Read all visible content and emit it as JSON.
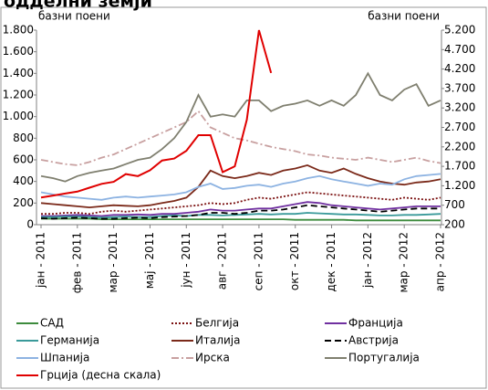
{
  "chart_data": {
    "type": "line",
    "title": "одделни земји",
    "y_label": "базни поени",
    "y2_label": "базни поени",
    "categories": [
      "јан - 2011",
      null,
      null,
      "фев - 2011",
      null,
      null,
      "мар - 2011",
      null,
      null,
      "мај - 2011",
      null,
      null,
      "јун - 2011",
      null,
      null,
      "авг - 2011",
      null,
      null,
      "сеп - 2011",
      null,
      null,
      "окт - 2011",
      null,
      null,
      "дек - 2011",
      null,
      null,
      "јан - 2012",
      null,
      null,
      "мар - 2012",
      null,
      null,
      "апр - 2012"
    ],
    "ylim": [
      0,
      1800
    ],
    "yticks": [
      0,
      200,
      400,
      600,
      800,
      {
        "value": 1000,
        "label": "1.000"
      },
      {
        "value": 1200,
        "label": "1.200"
      },
      {
        "value": 1400,
        "label": "1.400"
      },
      {
        "value": 1600,
        "label": "1.600"
      },
      {
        "value": 1800,
        "label": "1.800"
      }
    ],
    "y2lim": [
      200,
      5200
    ],
    "y2ticks": [
      200,
      700,
      {
        "value": 1200,
        "label": "1.200"
      },
      {
        "value": 1700,
        "label": "1.700"
      },
      {
        "value": 2200,
        "label": "2.200"
      },
      {
        "value": 2700,
        "label": "2.700"
      },
      {
        "value": 3200,
        "label": "3.200"
      },
      {
        "value": 3700,
        "label": "3.700"
      },
      {
        "value": 4200,
        "label": "4.200"
      },
      {
        "value": 4700,
        "label": "4.700"
      },
      {
        "value": 5200,
        "label": "5.200"
      }
    ],
    "grid": false,
    "legend": "bottom",
    "series": [
      {
        "name": "САД",
        "color": "#3d8b3d",
        "dash": "solid",
        "values": [
          55,
          55,
          55,
          55,
          55,
          50,
          50,
          50,
          50,
          50,
          50,
          50,
          50,
          50,
          50,
          50,
          50,
          50,
          50,
          50,
          50,
          45,
          45,
          45,
          45,
          45,
          40,
          40,
          40,
          40,
          40,
          40,
          40,
          40
        ]
      },
      {
        "name": "Белгија",
        "color": "#7b1010",
        "dash": "dotted",
        "values": [
          100,
          100,
          110,
          110,
          100,
          120,
          130,
          120,
          130,
          140,
          150,
          160,
          170,
          180,
          200,
          190,
          200,
          230,
          250,
          240,
          260,
          280,
          300,
          290,
          280,
          270,
          260,
          250,
          240,
          230,
          250,
          240,
          230,
          250
        ]
      },
      {
        "name": "Франција",
        "color": "#7030a0",
        "dash": "solid",
        "values": [
          80,
          80,
          85,
          90,
          85,
          80,
          90,
          90,
          95,
          90,
          100,
          100,
          110,
          120,
          140,
          130,
          130,
          140,
          150,
          150,
          170,
          190,
          210,
          200,
          180,
          170,
          160,
          150,
          140,
          150,
          160,
          170,
          170,
          170
        ]
      },
      {
        "name": "Германија",
        "color": "#3a9a9a",
        "dash": "solid",
        "values": [
          70,
          70,
          75,
          75,
          70,
          65,
          70,
          75,
          70,
          70,
          80,
          85,
          80,
          90,
          90,
          85,
          90,
          95,
          100,
          95,
          100,
          100,
          110,
          105,
          100,
          95,
          95,
          90,
          85,
          85,
          90,
          90,
          95,
          100
        ]
      },
      {
        "name": "Италија",
        "color": "#7b2a1a",
        "dash": "solid",
        "values": [
          200,
          190,
          180,
          170,
          160,
          170,
          180,
          175,
          170,
          180,
          200,
          220,
          250,
          350,
          500,
          450,
          430,
          450,
          480,
          460,
          500,
          520,
          550,
          500,
          480,
          520,
          470,
          430,
          400,
          380,
          370,
          390,
          400,
          420
        ]
      },
      {
        "name": "Австрија",
        "color": "#000000",
        "dash": "dashed",
        "values": [
          60,
          55,
          60,
          65,
          60,
          55,
          55,
          60,
          65,
          60,
          70,
          75,
          80,
          90,
          110,
          110,
          100,
          110,
          130,
          130,
          140,
          160,
          180,
          170,
          160,
          150,
          140,
          130,
          120,
          130,
          140,
          150,
          150,
          150
        ]
      },
      {
        "name": "Шпанија",
        "color": "#8db3e2",
        "dash": "solid",
        "values": [
          300,
          280,
          260,
          250,
          240,
          230,
          250,
          260,
          250,
          260,
          270,
          280,
          300,
          350,
          380,
          330,
          340,
          360,
          370,
          350,
          380,
          400,
          430,
          450,
          420,
          400,
          380,
          360,
          380,
          370,
          420,
          450,
          460,
          470
        ]
      },
      {
        "name": "Ирска",
        "color": "#c8a0a0",
        "dash": "dashdot",
        "values": [
          600,
          580,
          560,
          550,
          580,
          620,
          650,
          700,
          750,
          800,
          850,
          900,
          950,
          1050,
          900,
          850,
          800,
          780,
          750,
          720,
          700,
          680,
          650,
          640,
          620,
          610,
          600,
          620,
          600,
          580,
          600,
          620,
          590,
          570
        ]
      },
      {
        "name": "Португалија",
        "color": "#7f7f6f",
        "dash": "solid",
        "values": [
          450,
          430,
          400,
          450,
          480,
          500,
          520,
          560,
          600,
          620,
          700,
          800,
          950,
          1200,
          1000,
          1020,
          1000,
          1150,
          1150,
          1050,
          1100,
          1120,
          1150,
          1100,
          1150,
          1100,
          1200,
          1400,
          1200,
          1150,
          1250,
          1300,
          1100,
          1150
        ]
      },
      {
        "name": "Грција (десна скала)",
        "color": "#e00000",
        "dash": "solid",
        "axis": "y2",
        "values": [
          900,
          950,
          1000,
          1050,
          1150,
          1250,
          1300,
          1500,
          1450,
          1600,
          1850,
          1900,
          2100,
          2500,
          2500,
          1550,
          1700,
          2900,
          5200,
          4100,
          null,
          null,
          null,
          null,
          null,
          null,
          null,
          null,
          null,
          null,
          null,
          null,
          null,
          null
        ]
      }
    ]
  }
}
